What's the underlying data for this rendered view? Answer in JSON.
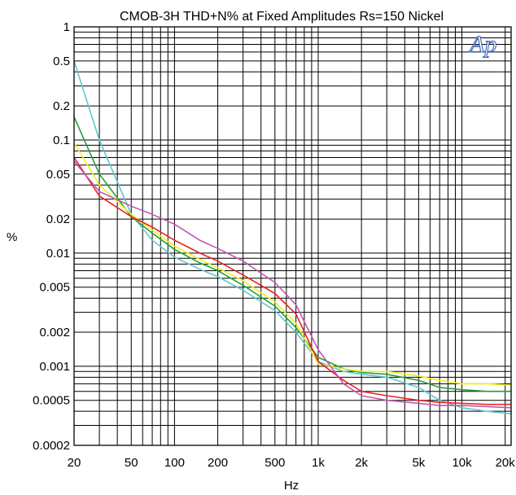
{
  "chart_data": {
    "type": "line",
    "title": "CMOB-3H  THD+N%  at Fixed Amplitudes   Rs=150  Nickel",
    "xlabel": "Hz",
    "ylabel": "%",
    "x_scale": "log",
    "y_scale": "log",
    "xlim": [
      20,
      22000
    ],
    "ylim": [
      0.0002,
      1
    ],
    "grid": true,
    "logo": "Ap",
    "x_ticks": [
      {
        "value": 20,
        "label": "20"
      },
      {
        "value": 50,
        "label": "50"
      },
      {
        "value": 100,
        "label": "100"
      },
      {
        "value": 200,
        "label": "200"
      },
      {
        "value": 500,
        "label": "500"
      },
      {
        "value": 1000,
        "label": "1k"
      },
      {
        "value": 2000,
        "label": "2k"
      },
      {
        "value": 5000,
        "label": "5k"
      },
      {
        "value": 10000,
        "label": "10k"
      },
      {
        "value": 20000,
        "label": "20k"
      }
    ],
    "y_ticks": [
      {
        "value": 1,
        "label": "1"
      },
      {
        "value": 0.5,
        "label": "0.5"
      },
      {
        "value": 0.2,
        "label": "0.2"
      },
      {
        "value": 0.1,
        "label": "0.1"
      },
      {
        "value": 0.05,
        "label": "0.05"
      },
      {
        "value": 0.02,
        "label": "0.02"
      },
      {
        "value": 0.01,
        "label": "0.01"
      },
      {
        "value": 0.005,
        "label": "0.005"
      },
      {
        "value": 0.002,
        "label": "0.002"
      },
      {
        "value": 0.001,
        "label": "0.001"
      },
      {
        "value": 0.0005,
        "label": "0.0005"
      },
      {
        "value": 0.0002,
        "label": "0.0002"
      }
    ],
    "x": [
      20,
      30,
      50,
      70,
      100,
      150,
      200,
      300,
      500,
      700,
      1000,
      1500,
      2000,
      3000,
      5000,
      7000,
      10000,
      15000,
      22000
    ],
    "series": [
      {
        "color": "#5fc8cc",
        "values": [
          0.5,
          0.1,
          0.022,
          0.013,
          0.0092,
          0.0072,
          0.0062,
          0.0047,
          0.0031,
          0.002,
          0.0011,
          0.0009,
          0.00085,
          0.0008,
          0.00065,
          0.0005,
          0.00043,
          0.0004,
          0.00038
        ]
      },
      {
        "color": "#22a03c",
        "values": [
          0.16,
          0.05,
          0.021,
          0.015,
          0.0108,
          0.0082,
          0.007,
          0.0052,
          0.0034,
          0.0022,
          0.0012,
          0.00095,
          0.00088,
          0.00085,
          0.00075,
          0.00065,
          0.00062,
          0.0006,
          0.0006
        ]
      },
      {
        "color": "#f0f020",
        "values": [
          0.095,
          0.04,
          0.022,
          0.016,
          0.0115,
          0.0088,
          0.0074,
          0.0057,
          0.0037,
          0.0024,
          0.00105,
          0.00095,
          0.0009,
          0.0009,
          0.00082,
          0.00075,
          0.0007,
          0.0007,
          0.00068
        ]
      },
      {
        "color": "#ee2222",
        "values": [
          0.07,
          0.032,
          0.021,
          0.017,
          0.013,
          0.01,
          0.0085,
          0.0064,
          0.0044,
          0.0029,
          0.0011,
          0.00075,
          0.0006,
          0.00055,
          0.0005,
          0.00048,
          0.00047,
          0.00046,
          0.00046
        ]
      },
      {
        "color": "#c258b0",
        "values": [
          0.065,
          0.035,
          0.026,
          0.022,
          0.018,
          0.013,
          0.011,
          0.0085,
          0.0055,
          0.0035,
          0.0014,
          0.0007,
          0.00055,
          0.0005,
          0.00047,
          0.00045,
          0.00045,
          0.00044,
          0.00043
        ]
      }
    ]
  }
}
